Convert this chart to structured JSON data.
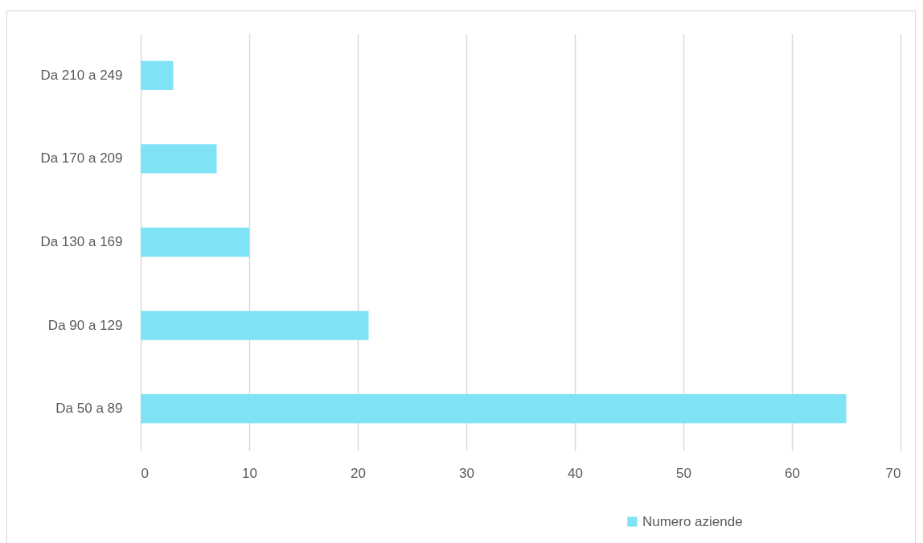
{
  "chart_data": {
    "type": "bar",
    "orientation": "horizontal",
    "categories": [
      "Da 210 a 249",
      "Da 170 a 209",
      "Da 130 a 169",
      "Da 90 a 129",
      "Da 50 a 89"
    ],
    "series": [
      {
        "name": "Numero aziende",
        "color": "#80e3f5",
        "values": [
          3,
          7,
          10,
          21,
          65
        ]
      }
    ],
    "xlim": [
      0,
      70
    ],
    "xticks": [
      0,
      10,
      20,
      30,
      40,
      50,
      60,
      70
    ],
    "grid": "x",
    "legend": "bottom"
  }
}
